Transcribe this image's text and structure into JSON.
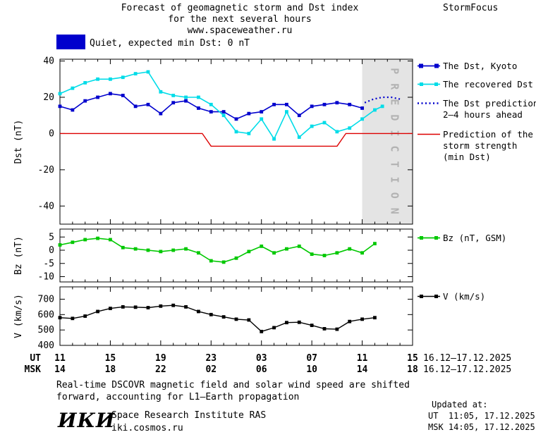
{
  "header": {
    "title_line1": "Forecast of geomagnetic storm and Dst index",
    "title_line2": "for the next several hours",
    "title_line3": "www.spaceweather.ru",
    "brand": "StormFocus"
  },
  "colors": {
    "dst_blue": "#0000cd",
    "recovered_cyan": "#00dce8",
    "prediction_red": "#dd0000",
    "bz_green": "#00c800",
    "v_black": "#000000",
    "band_gray": "#e4e4e4",
    "band_text_gray": "#b2b2b2"
  },
  "status_banner": {
    "swatch_color": "#0000cd",
    "label": "Quiet, expected min Dst: 0 nT"
  },
  "legend": {
    "dst_kyoto": {
      "label": "The Dst, Kyoto"
    },
    "recovered": {
      "label": "The recovered Dst"
    },
    "prediction": {
      "lines": [
        "The Dst prediction",
        "2–4 hours ahead"
      ]
    },
    "storm_strength": {
      "lines": [
        "Prediction of the",
        "storm strength",
        "(min Dst)"
      ]
    },
    "bz": {
      "label": "Bz (nT, GSM)"
    },
    "v": {
      "label": "V (km/s)"
    }
  },
  "footer": {
    "note_line1": "Real-time DSCOVR magnetic field and solar wind speed are shifted",
    "note_line2": "forward, accounting for L1–Earth propagation",
    "updated_label": "Updated at:",
    "updated_ut": "UT  11:05, 17.12.2025",
    "updated_msk": "MSK 14:05, 17.12.2025",
    "logo_text": "ИКИ",
    "institute": "Space Research Institute RAS",
    "institute_url": "iki.cosmos.ru"
  },
  "chart_data": {
    "type": "line",
    "xaxis": {
      "xlim_hours": [
        0,
        28
      ],
      "xticks_hours": [
        0,
        4,
        8,
        12,
        16,
        20,
        24,
        28
      ],
      "ut_axis_label": "UT",
      "msk_axis_label": "MSK",
      "ut_tick_labels": [
        "11",
        "15",
        "19",
        "23",
        "03",
        "07",
        "11",
        "15"
      ],
      "msk_tick_labels": [
        "14",
        "18",
        "22",
        "02",
        "06",
        "10",
        "14",
        "18"
      ],
      "ut_date_range": "16.12–17.12.2025",
      "msk_date_range": "16.12–17.12.2025"
    },
    "panels": [
      {
        "ylabel": "Dst (nT)",
        "ylim": [
          -50,
          41
        ],
        "yticks": [
          40,
          20,
          0,
          -20,
          -40
        ],
        "prediction_band": {
          "x0": 24,
          "x1": 28,
          "label": "PREDICTION"
        },
        "series": [
          {
            "name": "The Dst, Kyoto",
            "color": "#0000cd",
            "marker": "square",
            "width": 1.6,
            "x": [
              0,
              1,
              2,
              3,
              4,
              5,
              6,
              7,
              8,
              9,
              10,
              11,
              12,
              13,
              14,
              15,
              16,
              17,
              18,
              19,
              20,
              21,
              22,
              23,
              24
            ],
            "y": [
              15,
              13,
              18,
              20,
              22,
              21,
              15,
              16,
              11,
              17,
              18,
              14,
              12,
              12,
              8,
              11,
              12,
              16,
              16,
              10,
              15,
              16,
              17,
              16,
              14
            ]
          },
          {
            "name": "The recovered Dst",
            "color": "#00dce8",
            "marker": "square",
            "width": 1.6,
            "x": [
              0,
              1,
              2,
              3,
              4,
              5,
              6,
              7,
              8,
              9,
              10,
              11,
              12,
              13,
              14,
              15,
              16,
              17,
              18,
              19,
              20,
              21,
              22,
              23,
              24,
              25,
              25.6
            ],
            "y": [
              22,
              25,
              28,
              30,
              30,
              31,
              33,
              34,
              23,
              21,
              20,
              20,
              16,
              10,
              1,
              0,
              8,
              -3,
              12,
              -2,
              4,
              6,
              1,
              3,
              8,
              13,
              15
            ]
          },
          {
            "name": "The Dst prediction 2–4 hours ahead",
            "color": "#0000cd",
            "style": "dotted",
            "width": 2.2,
            "x": [
              24.2,
              24.9,
              25.6,
              26.3,
              27
            ],
            "y": [
              17,
              19,
              20,
              20,
              19
            ]
          },
          {
            "name": "Prediction of the storm strength (min Dst)",
            "color": "#dd0000",
            "width": 1.4,
            "x": [
              0,
              11.3,
              12,
              22,
              22.7,
              28
            ],
            "y": [
              0,
              0,
              -7,
              -7,
              0,
              0
            ]
          }
        ]
      },
      {
        "ylabel": "Bz (nT)",
        "ylim": [
          -12,
          8
        ],
        "yticks": [
          5,
          0,
          -5,
          -10
        ],
        "series": [
          {
            "name": "Bz (nT, GSM)",
            "color": "#00c800",
            "marker": "square",
            "width": 1.6,
            "x": [
              0,
              1,
              2,
              3,
              4,
              5,
              6,
              7,
              8,
              9,
              10,
              11,
              12,
              13,
              14,
              15,
              16,
              17,
              18,
              19,
              20,
              21,
              22,
              23,
              24,
              25
            ],
            "y": [
              2,
              3,
              4,
              4.5,
              4,
              1,
              0.5,
              0,
              -0.5,
              0,
              0.5,
              -1,
              -4,
              -4.5,
              -3,
              -0.5,
              1.5,
              -1,
              0.5,
              1.5,
              -1.5,
              -2,
              -1,
              0.5,
              -1,
              2.5
            ]
          }
        ]
      },
      {
        "ylabel": "V (km/s)",
        "ylim": [
          400,
          780
        ],
        "yticks": [
          400,
          500,
          600,
          700
        ],
        "series": [
          {
            "name": "V (km/s)",
            "color": "#000000",
            "marker": "square",
            "width": 1.4,
            "x": [
              0,
              1,
              2,
              3,
              4,
              5,
              6,
              7,
              8,
              9,
              10,
              11,
              12,
              13,
              14,
              15,
              16,
              17,
              18,
              19,
              20,
              21,
              22,
              23,
              24,
              25
            ],
            "y": [
              580,
              575,
              590,
              620,
              640,
              650,
              648,
              645,
              655,
              660,
              650,
              620,
              600,
              585,
              570,
              565,
              490,
              515,
              548,
              550,
              530,
              508,
              505,
              555,
              570,
              580
            ]
          }
        ]
      }
    ]
  }
}
